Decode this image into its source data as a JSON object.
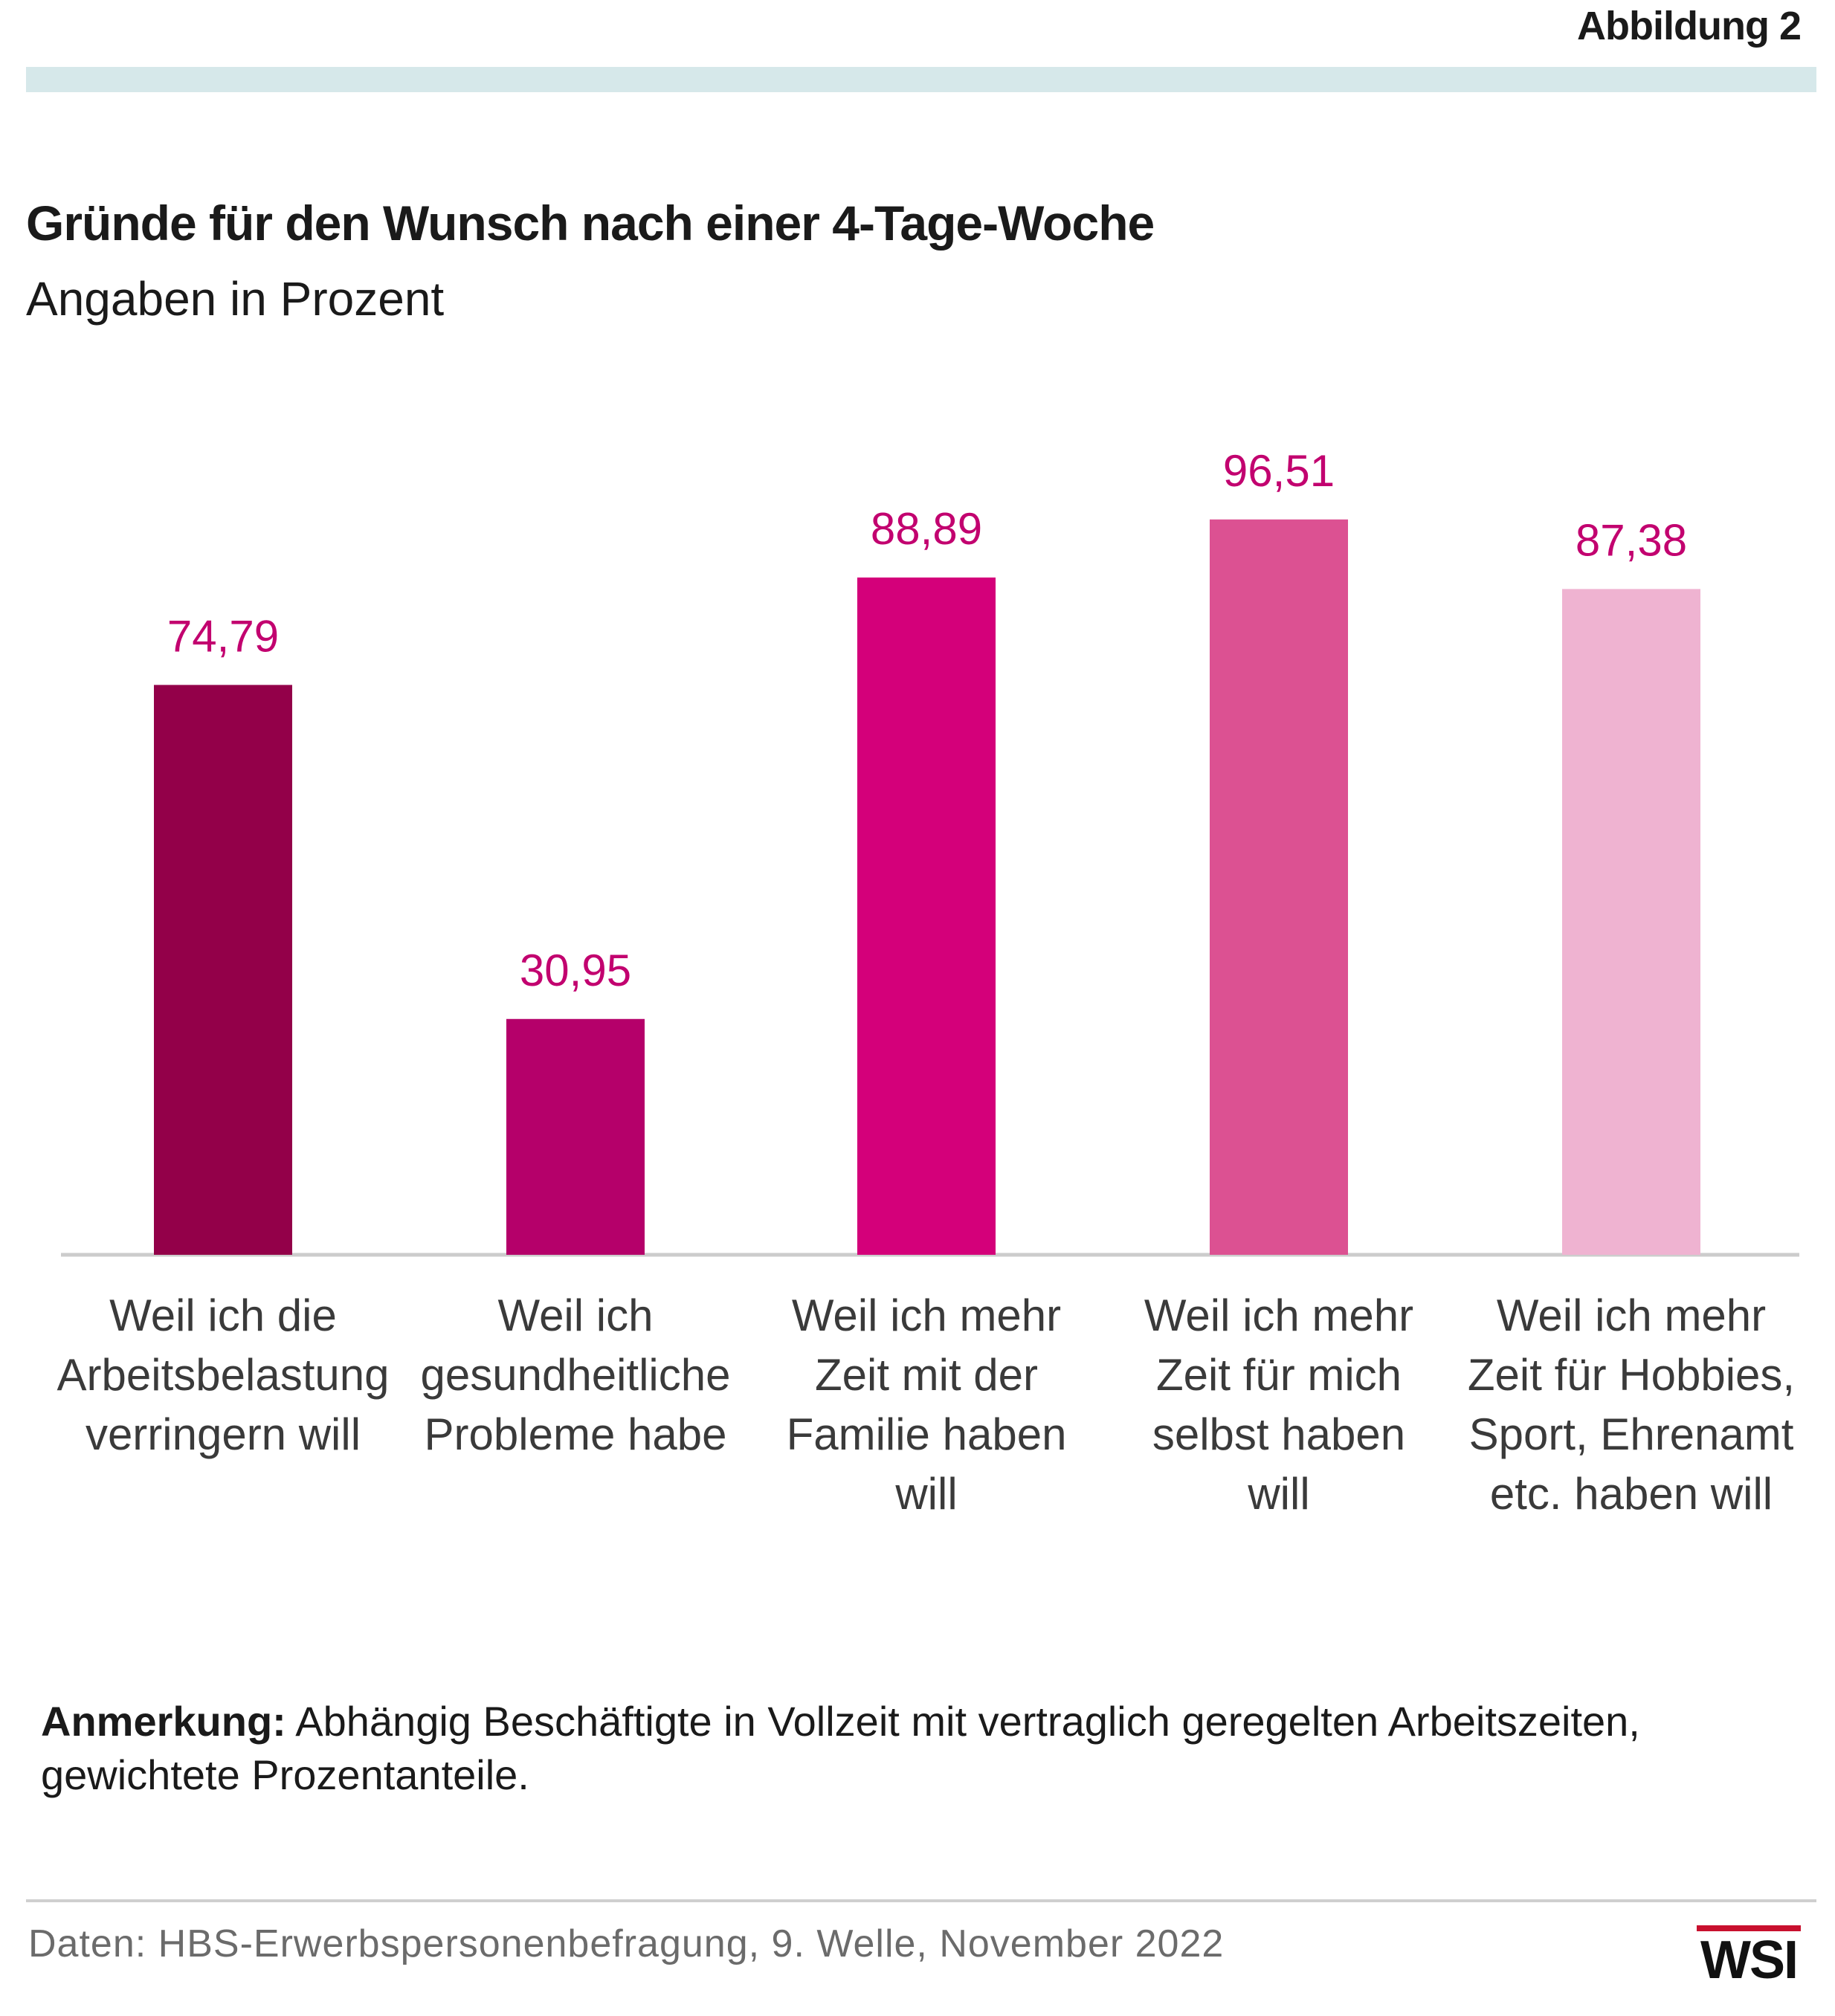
{
  "figure_label": "Abbildung 2",
  "title": "Gründe für den Wunsch nach einer 4-Tage-Woche",
  "subtitle": "Angaben in Prozent",
  "note": {
    "label": "Anmerkung:",
    "text": "Abhängig Beschäftigte in Vollzeit mit vertraglich geregelten Arbeitszeiten, gewichtete Prozentanteile."
  },
  "source": "Daten: HBS-Erwerbspersonenbefragung, 9. Welle, November 2022",
  "logo": "WSI",
  "chart_data": {
    "type": "bar",
    "categories": [
      "Weil ich die Arbeitsbelastung verringern will",
      "Weil ich gesundheitliche Probleme habe",
      "Weil ich mehr Zeit mit der Familie haben will",
      "Weil ich mehr Zeit für mich selbst haben will",
      "Weil ich mehr Zeit für Hobbies, Sport, Ehrenamt etc. haben will"
    ],
    "category_lines": [
      [
        "Weil ich die",
        "Arbeitsbelastung",
        "verringern will"
      ],
      [
        "Weil ich",
        "gesundheitliche",
        "Probleme habe"
      ],
      [
        "Weil ich mehr",
        "Zeit mit der",
        "Familie haben",
        "will"
      ],
      [
        "Weil ich mehr",
        "Zeit für mich",
        "selbst haben",
        "will"
      ],
      [
        "Weil ich mehr",
        "Zeit für Hobbies,",
        "Sport, Ehrenamt",
        "etc. haben will"
      ]
    ],
    "values": [
      74.79,
      30.95,
      88.89,
      96.51,
      87.38
    ],
    "value_labels": [
      "74,79",
      "30,95",
      "88,89",
      "96,51",
      "87,38"
    ],
    "colors": [
      "#930049",
      "#b5006a",
      "#d4007a",
      "#dc5192",
      "#efb3d1"
    ],
    "label_color": "#c2006f",
    "baseline_color": "#cccccc",
    "ylim": [
      0,
      100
    ],
    "grid": false,
    "legend": "none",
    "xlabel": "",
    "ylabel": ""
  }
}
